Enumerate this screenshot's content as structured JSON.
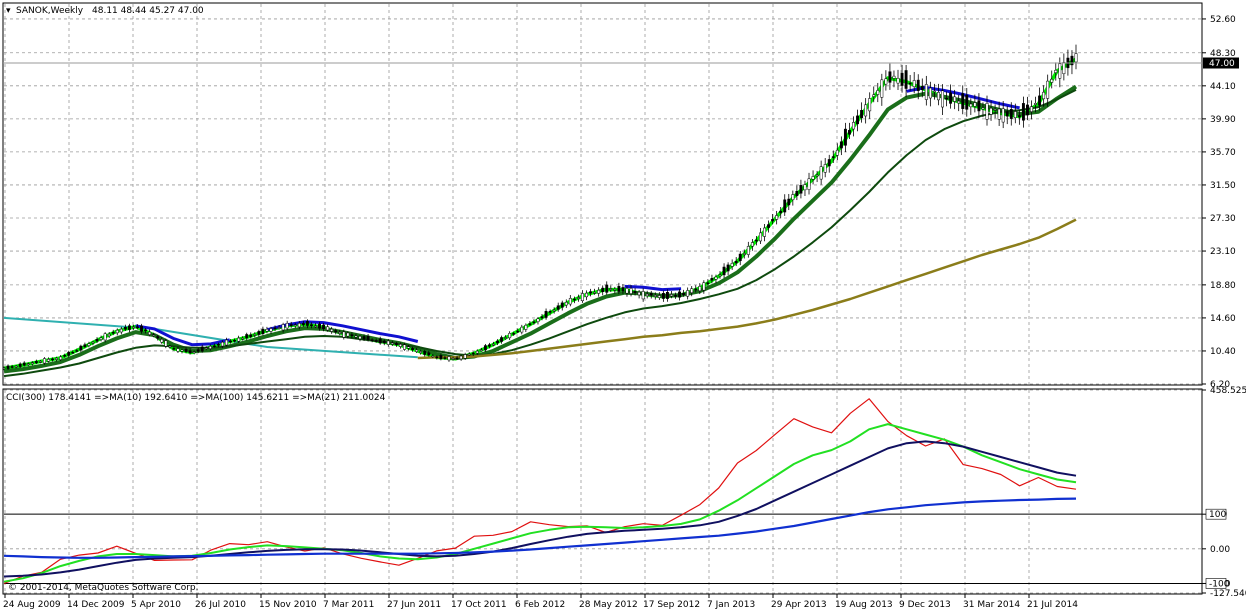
{
  "window": {
    "symbol_label": "SANOK,Weekly",
    "ohlc": "48.11 48.44 45.27 47.00",
    "current_price": "47.00"
  },
  "indicator": {
    "label": "CCI(300) 178.4141 =>MA(10) 192.6410 =>MA(100) 145.6211 =>MA(21) 211.0024",
    "copyright": "© 2001-2014, MetaQuotes Software Corp."
  },
  "colors": {
    "background": "#ffffff",
    "grid": "#9a9a9a",
    "bull_candle": "#000000",
    "ma_fast": "#00ee00",
    "ma_mid": "#1a6e1a",
    "ma_slow": "#0e4a0e",
    "ma_long": "#8b7d1a",
    "teal_line": "#2fb0b0",
    "blue_band": "#1010d0",
    "cci_red": "#e01010",
    "cci_ma10": "#22e022",
    "cci_ma21": "#101060",
    "cci_ma100": "#1030d0"
  },
  "chart_data": [
    {
      "type": "candlestick",
      "title": "SANOK,Weekly",
      "y_ticks": [
        "52.60",
        "48.30",
        "44.10",
        "39.90",
        "35.70",
        "31.50",
        "27.30",
        "23.10",
        "18.80",
        "14.60",
        "10.40",
        "6.20"
      ],
      "x_ticks": [
        "24 Aug 2009",
        "14 Dec 2009",
        "5 Apr 2010",
        "26 Jul 2010",
        "15 Nov 2010",
        "7 Mar 2011",
        "27 Jun 2011",
        "17 Oct 2011",
        "6 Feb 2012",
        "28 May 2012",
        "17 Sep 2012",
        "7 Jan 2013",
        "29 Apr 2013",
        "19 Aug 2013",
        "9 Dec 2013",
        "31 Mar 2014",
        "21 Jul 2014"
      ],
      "ylim": [
        6.2,
        54.5
      ],
      "grid": true,
      "last_close": 47.0,
      "series": [
        {
          "values": [
            8.2,
            8.6,
            9.1,
            9.5,
            10.6,
            11.8,
            12.9,
            13.5,
            12.4,
            10.7,
            10.2,
            10.9,
            11.6,
            12.2,
            13.0,
            13.6,
            13.8,
            13.4,
            12.6,
            12.1,
            11.6,
            11.2,
            10.4,
            9.6,
            9.4,
            10.1,
            11.2,
            12.5,
            13.8,
            15.2,
            16.6,
            17.6,
            18.2,
            18.2,
            17.6,
            17.3,
            17.5,
            18.4,
            19.9,
            21.8,
            24.4,
            27.2,
            30.0,
            32.2,
            34.5,
            38.3,
            41.8,
            45.1,
            44.6,
            43.6,
            42.6,
            41.9,
            41.3,
            40.6,
            40.2,
            41.8,
            46.0,
            47.5
          ]
        },
        {
          "values": [
            7.8,
            8.1,
            8.5,
            9.0,
            9.9,
            11.0,
            12.0,
            12.8,
            12.4,
            11.2,
            10.4,
            10.5,
            11.0,
            11.6,
            12.3,
            12.9,
            13.3,
            13.2,
            12.8,
            12.3,
            11.8,
            11.4,
            10.8,
            10.0,
            9.5,
            9.7,
            10.4,
            11.5,
            12.6,
            13.9,
            15.2,
            16.4,
            17.3,
            17.8,
            17.7,
            17.4,
            17.5,
            18.0,
            19.0,
            20.4,
            22.4,
            24.7,
            27.2,
            29.5,
            31.8,
            34.7,
            37.8,
            41.1,
            42.6,
            43.1,
            42.7,
            42.2,
            41.6,
            41.0,
            40.5,
            40.8,
            42.5,
            44.0
          ]
        },
        {
          "values": [
            7.2,
            7.5,
            7.9,
            8.3,
            8.8,
            9.5,
            10.2,
            10.8,
            11.1,
            11.0,
            10.8,
            10.8,
            11.0,
            11.3,
            11.6,
            11.9,
            12.2,
            12.3,
            12.2,
            11.9,
            11.6,
            11.3,
            10.9,
            10.4,
            10.0,
            9.8,
            10.0,
            10.5,
            11.2,
            12.0,
            12.9,
            13.8,
            14.6,
            15.3,
            15.8,
            16.1,
            16.5,
            17.0,
            17.6,
            18.3,
            19.4,
            20.8,
            22.4,
            24.2,
            26.1,
            28.3,
            30.6,
            33.1,
            35.3,
            37.2,
            38.6,
            39.6,
            40.3,
            40.8,
            41.0,
            41.4,
            42.4,
            43.6
          ]
        },
        {
          "values": [
            null,
            null,
            null,
            null,
            null,
            null,
            null,
            null,
            null,
            null,
            null,
            null,
            null,
            null,
            null,
            null,
            null,
            null,
            null,
            null,
            null,
            null,
            9.5,
            9.6,
            9.6,
            9.7,
            9.9,
            10.1,
            10.4,
            10.7,
            11.0,
            11.3,
            11.6,
            11.9,
            12.2,
            12.4,
            12.7,
            12.9,
            13.2,
            13.5,
            13.9,
            14.4,
            15.0,
            15.6,
            16.3,
            17.0,
            17.8,
            18.6,
            19.4,
            20.2,
            21.0,
            21.8,
            22.6,
            23.3,
            24.0,
            24.8,
            25.9,
            27.1
          ]
        }
      ]
    },
    {
      "type": "line",
      "title": "CCI(300) 178.4141 =>MA(10) 192.6410 =>MA(100) 145.6211 =>MA(21) 211.0024",
      "y_ticks": [
        "458.5254",
        "100",
        "0.00",
        "-100",
        "-127.540"
      ],
      "ylim": [
        -127.54,
        458.5254
      ],
      "levels": [
        100,
        -100
      ],
      "series": [
        {
          "name": "CCI(300)",
          "values": [
            -100,
            -85,
            -60,
            -35,
            -20,
            -5,
            0,
            -10,
            -30,
            -40,
            -25,
            -5,
            10,
            20,
            15,
            5,
            0,
            -5,
            -10,
            -25,
            -45,
            -40,
            -30,
            -10,
            10,
            30,
            40,
            55,
            70,
            75,
            65,
            60,
            55,
            60,
            70,
            75,
            90,
            130,
            180,
            240,
            290,
            330,
            370,
            360,
            330,
            390,
            440,
            360,
            330,
            300,
            310,
            250,
            230,
            210,
            190,
            200,
            180,
            178
          ]
        },
        {
          "name": "MA(10)",
          "values": [
            -95,
            -85,
            -70,
            -50,
            -35,
            -22,
            -15,
            -15,
            -18,
            -22,
            -20,
            -12,
            -2,
            5,
            10,
            8,
            4,
            0,
            -4,
            -12,
            -22,
            -28,
            -30,
            -25,
            -15,
            0,
            15,
            30,
            45,
            55,
            62,
            64,
            62,
            60,
            62,
            66,
            72,
            85,
            110,
            140,
            175,
            210,
            245,
            270,
            285,
            310,
            345,
            360,
            345,
            330,
            315,
            295,
            270,
            250,
            230,
            215,
            200,
            192
          ]
        },
        {
          "name": "MA(21)",
          "values": [
            -80,
            -78,
            -74,
            -68,
            -60,
            -50,
            -40,
            -32,
            -28,
            -26,
            -24,
            -20,
            -15,
            -10,
            -6,
            -3,
            -1,
            -1,
            -2,
            -5,
            -10,
            -15,
            -20,
            -22,
            -20,
            -15,
            -8,
            2,
            14,
            25,
            35,
            43,
            48,
            52,
            55,
            58,
            62,
            68,
            78,
            95,
            115,
            140,
            165,
            190,
            215,
            240,
            265,
            290,
            305,
            310,
            305,
            295,
            280,
            265,
            250,
            235,
            220,
            211
          ]
        },
        {
          "name": "MA(100)",
          "values": [
            -20,
            -22,
            -24,
            -25,
            -26,
            -26,
            -25,
            -24,
            -23,
            -22,
            -21,
            -20,
            -19,
            -18,
            -17,
            -16,
            -15,
            -14,
            -14,
            -14,
            -14,
            -14,
            -14,
            -13,
            -12,
            -10,
            -8,
            -5,
            -2,
            2,
            6,
            10,
            14,
            18,
            22,
            26,
            30,
            34,
            38,
            44,
            50,
            58,
            66,
            76,
            86,
            96,
            106,
            114,
            120,
            126,
            130,
            134,
            137,
            139,
            141,
            142,
            144,
            145
          ]
        }
      ]
    }
  ]
}
